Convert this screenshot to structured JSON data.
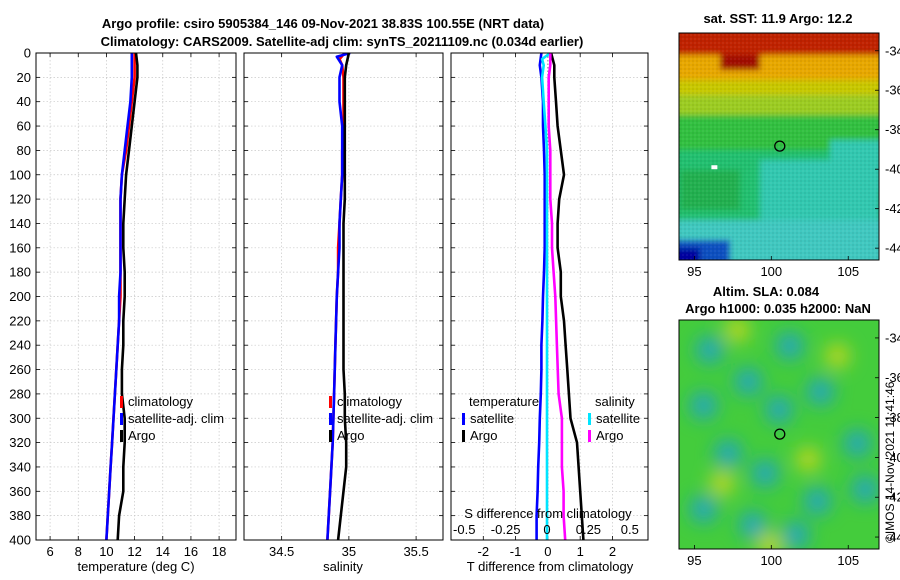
{
  "title": {
    "line1": "Argo profile: csiro 5905384_146 09-Nov-2021 38.83S 100.55E (NRT data)",
    "line2": "Climatology: CARS2009. Satellite-adj clim: synTS_20211109.nc (0.034d earlier)"
  },
  "colors": {
    "climatology": "#ff0000",
    "satellite": "#0000ff",
    "argo": "#000000",
    "salinity_satellite": "#00e5ff",
    "salinity_argo": "#ff00ff",
    "grid": "#c8c8c8",
    "zero_line": "#7f7f7f"
  },
  "chart_data": [
    {
      "type": "line",
      "id": "temperature",
      "xlabel": "temperature (deg C)",
      "ylabel": "",
      "xlim": [
        5,
        19.2
      ],
      "ylim": [
        0,
        400
      ],
      "xticks": [
        6,
        8,
        10,
        12,
        14,
        16,
        18
      ],
      "yticks": [
        0,
        20,
        40,
        60,
        80,
        100,
        120,
        140,
        160,
        180,
        200,
        220,
        240,
        260,
        280,
        300,
        320,
        340,
        360,
        380,
        400
      ],
      "y_reversed": true,
      "grid": true,
      "legend": {
        "location": "lower-right",
        "entries": [
          "climatology",
          "satellite-adj. clim",
          "Argo"
        ]
      },
      "series": [
        {
          "name": "climatology",
          "color_key": "climatology",
          "depth": [
            0,
            10,
            20,
            40,
            60,
            80,
            100,
            120,
            140,
            160,
            180,
            200,
            220,
            240,
            260,
            280,
            300,
            320,
            340,
            360,
            380,
            400
          ],
          "values": [
            12.0,
            12.0,
            12.0,
            11.8,
            11.6,
            11.4,
            11.1,
            11.0,
            11.0,
            11.0,
            11.0,
            11.0,
            10.9,
            10.8,
            10.7,
            10.6,
            10.5,
            10.4,
            10.3,
            10.2,
            10.1,
            10.0
          ]
        },
        {
          "name": "satellite-adj. clim",
          "color_key": "satellite",
          "depth": [
            0,
            10,
            20,
            40,
            60,
            80,
            100,
            120,
            140,
            160,
            180,
            200,
            220,
            240,
            260,
            280,
            300,
            320,
            340,
            360,
            380,
            400
          ],
          "values": [
            11.8,
            11.8,
            11.8,
            11.7,
            11.5,
            11.3,
            11.1,
            11.0,
            11.0,
            11.0,
            11.0,
            10.9,
            10.9,
            10.8,
            10.7,
            10.6,
            10.5,
            10.4,
            10.3,
            10.2,
            10.1,
            10.0
          ]
        },
        {
          "name": "Argo",
          "color_key": "argo",
          "depth": [
            0,
            10,
            20,
            30,
            40,
            60,
            80,
            100,
            120,
            140,
            160,
            180,
            200,
            220,
            240,
            260,
            280,
            300,
            320,
            340,
            360,
            380,
            400
          ],
          "values": [
            12.1,
            12.2,
            12.2,
            12.1,
            12.0,
            11.8,
            11.6,
            11.4,
            11.3,
            11.2,
            11.2,
            11.3,
            11.3,
            11.2,
            11.2,
            11.1,
            11.1,
            11.3,
            11.3,
            11.2,
            11.2,
            10.9,
            10.8
          ]
        }
      ]
    },
    {
      "type": "line",
      "id": "salinity",
      "xlabel": "salinity",
      "ylabel": "",
      "xlim": [
        34.22,
        35.7
      ],
      "ylim": [
        0,
        400
      ],
      "xticks": [
        34.5,
        35,
        35.5
      ],
      "x_ticklabels": [
        "34.5",
        "35",
        "35.5"
      ],
      "y_reversed": true,
      "grid": true,
      "legend": {
        "location": "lower-right",
        "entries": [
          "climatology",
          "satellite-adj. clim",
          "Argo"
        ]
      },
      "series": [
        {
          "name": "climatology",
          "color_key": "climatology",
          "depth": [
            0,
            5,
            10,
            20,
            40,
            60,
            80,
            100,
            120,
            140,
            160,
            180,
            200,
            240,
            280,
            320,
            360,
            400
          ],
          "values": [
            34.97,
            34.93,
            34.95,
            34.96,
            34.96,
            34.96,
            34.95,
            34.95,
            34.94,
            34.93,
            34.92,
            34.92,
            34.91,
            34.9,
            34.89,
            34.88,
            34.86,
            34.84
          ]
        },
        {
          "name": "satellite-adj. clim",
          "color_key": "satellite",
          "depth": [
            0,
            3,
            10,
            20,
            40,
            60,
            80,
            100,
            120,
            140,
            160,
            180,
            200,
            240,
            280,
            320,
            360,
            400
          ],
          "values": [
            35.01,
            34.91,
            34.95,
            34.93,
            34.93,
            34.95,
            34.95,
            34.95,
            34.94,
            34.93,
            34.93,
            34.92,
            34.91,
            34.9,
            34.89,
            34.88,
            34.86,
            34.84
          ]
        },
        {
          "name": "Argo",
          "color_key": "argo",
          "depth": [
            0,
            10,
            20,
            40,
            60,
            80,
            100,
            120,
            140,
            160,
            180,
            200,
            220,
            240,
            260,
            280,
            300,
            320,
            340,
            360,
            380,
            400
          ],
          "values": [
            35.0,
            34.98,
            34.97,
            34.97,
            34.97,
            34.97,
            34.97,
            34.97,
            34.96,
            34.96,
            34.96,
            34.96,
            34.96,
            34.96,
            34.96,
            34.97,
            34.97,
            34.98,
            34.98,
            34.96,
            34.94,
            34.92
          ]
        }
      ]
    },
    {
      "type": "line",
      "id": "difference",
      "xlabel": "T difference from climatology",
      "xlabel_top": "S difference from climatology",
      "ylabel": "",
      "xlim": [
        -3,
        3.1
      ],
      "ylim": [
        0,
        400
      ],
      "xticks": [
        -2,
        -1,
        0,
        1,
        2
      ],
      "x_ticklabels": [
        "-2",
        "-1",
        "0",
        "1",
        "2"
      ],
      "s_ticks": [
        -0.5,
        -0.25,
        0,
        0.25,
        0.5
      ],
      "s_ticklabels": [
        "-0.5",
        "-0.25",
        "0",
        "0.25",
        "0.5"
      ],
      "y_reversed": true,
      "grid": true,
      "zero_line": true,
      "legend": {
        "location": "lower",
        "temperature_header": "temperature",
        "salinity_header": "salinity",
        "temperature_entries": [
          "satellite",
          "Argo"
        ],
        "salinity_entries": [
          "satellite",
          "Argo"
        ]
      },
      "series": [
        {
          "name": "T satellite",
          "color_key": "satellite",
          "depth": [
            0,
            10,
            20,
            40,
            60,
            80,
            100,
            120,
            140,
            160,
            180,
            200,
            220,
            240,
            260,
            280,
            300,
            320,
            340,
            360,
            380,
            400
          ],
          "values": [
            -0.2,
            -0.25,
            -0.2,
            -0.15,
            -0.15,
            -0.12,
            -0.1,
            -0.1,
            -0.1,
            -0.1,
            -0.12,
            -0.15,
            -0.17,
            -0.2,
            -0.2,
            -0.22,
            -0.25,
            -0.27,
            -0.3,
            -0.32,
            -0.35,
            -0.35
          ]
        },
        {
          "name": "T Argo",
          "color_key": "argo",
          "depth": [
            0,
            10,
            20,
            40,
            60,
            80,
            100,
            120,
            140,
            160,
            180,
            200,
            220,
            240,
            260,
            280,
            300,
            320,
            340,
            360,
            380,
            400
          ],
          "values": [
            0.1,
            0.2,
            0.2,
            0.25,
            0.3,
            0.4,
            0.5,
            0.35,
            0.3,
            0.3,
            0.4,
            0.4,
            0.5,
            0.55,
            0.6,
            0.65,
            0.7,
            0.9,
            0.95,
            1.0,
            1.05,
            1.1
          ]
        },
        {
          "name": "S satellite",
          "color_key": "salinity_satellite",
          "depth": [
            0,
            5,
            10,
            20,
            40,
            60,
            80,
            100,
            120,
            140,
            160,
            180,
            200,
            240,
            280,
            320,
            360,
            400
          ],
          "values": [
            0.02,
            -0.03,
            -0.02,
            -0.03,
            -0.02,
            -0.01,
            0,
            0,
            0,
            0,
            0,
            0,
            0,
            0,
            0,
            0,
            0,
            0
          ]
        },
        {
          "name": "S Argo",
          "color_key": "salinity_argo",
          "depth": [
            0,
            10,
            20,
            40,
            60,
            80,
            100,
            120,
            140,
            160,
            180,
            200,
            240,
            280,
            300,
            320,
            340,
            360,
            380,
            400
          ],
          "values": [
            0.02,
            0.02,
            0.01,
            0.01,
            0.01,
            0.02,
            0.02,
            0.02,
            0.03,
            0.03,
            0.04,
            0.05,
            0.06,
            0.07,
            0.09,
            0.09,
            0.09,
            0.1,
            0.1,
            0.11
          ]
        }
      ]
    },
    {
      "type": "heatmap",
      "id": "sst_map",
      "title": "sat. SST: 11.9 Argo: 12.2",
      "xlim": [
        94,
        107
      ],
      "ylim": [
        -44.6,
        -33.1
      ],
      "xticks": [
        95,
        100,
        105
      ],
      "yticks": [
        -34,
        -36,
        -38,
        -40,
        -42,
        -44
      ],
      "argo_position": [
        100.55,
        -38.83
      ],
      "gap_position": [
        96.3,
        -39.9
      ]
    },
    {
      "type": "heatmap",
      "id": "sla_map",
      "title": "Altim. SLA: 0.084",
      "subtitle": "Argo h1000: 0.035 h2000: NaN",
      "xlim": [
        94,
        107
      ],
      "ylim": [
        -44.6,
        -33.1
      ],
      "xticks": [
        95,
        100,
        105
      ],
      "yticks": [
        -34,
        -36,
        -38,
        -40,
        -42,
        -44
      ],
      "argo_position": [
        100.55,
        -38.83
      ],
      "eddies": [
        {
          "lon": 96.0,
          "lat": -34.6,
          "kind": "low"
        },
        {
          "lon": 101.2,
          "lat": -34.4,
          "kind": "low"
        },
        {
          "lon": 98.5,
          "lat": -36.2,
          "kind": "low"
        },
        {
          "lon": 103.2,
          "lat": -36.7,
          "kind": "low"
        },
        {
          "lon": 95.6,
          "lat": -37.4,
          "kind": "low"
        },
        {
          "lon": 100.5,
          "lat": -37.6,
          "kind": "low"
        },
        {
          "lon": 105.6,
          "lat": -39.3,
          "kind": "low"
        },
        {
          "lon": 97.2,
          "lat": -39.8,
          "kind": "low"
        },
        {
          "lon": 99.6,
          "lat": -40.8,
          "kind": "low"
        },
        {
          "lon": 103.0,
          "lat": -42.2,
          "kind": "low"
        },
        {
          "lon": 106.1,
          "lat": -41.6,
          "kind": "low"
        },
        {
          "lon": 95.6,
          "lat": -42.6,
          "kind": "low"
        },
        {
          "lon": 98.8,
          "lat": -43.4,
          "kind": "low"
        },
        {
          "lon": 101.6,
          "lat": -43.9,
          "kind": "low"
        },
        {
          "lon": 97.8,
          "lat": -33.6,
          "kind": "high"
        },
        {
          "lon": 104.3,
          "lat": -34.9,
          "kind": "high"
        },
        {
          "lon": 96.8,
          "lat": -41.3,
          "kind": "high"
        },
        {
          "lon": 102.4,
          "lat": -40.1,
          "kind": "high"
        },
        {
          "lon": 99.9,
          "lat": -44.4,
          "kind": "high"
        }
      ]
    }
  ],
  "footer": {
    "stamp": "©IMOS 14-Nov-2021 11:41:46"
  }
}
